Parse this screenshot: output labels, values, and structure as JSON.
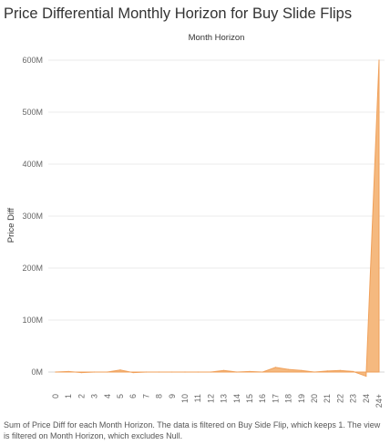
{
  "page": {
    "title": "Price Differential Monthly Horizon for Buy Slide Flips",
    "caption": "Sum of Price Diff for each Month Horizon. The data is filtered on Buy Side Flip, which keeps 1. The view is filtered on Month Horizon, which excludes Null."
  },
  "colors": {
    "area_fill": "#F5B97F",
    "area_stroke": "#F0A05A",
    "gridline": "#EBEBEB",
    "zero_line": "#D6D6D6",
    "text": "#333333",
    "tick_text": "#666666"
  },
  "chart_data": {
    "type": "area",
    "title": "Month Horizon",
    "xlabel": "Month Horizon",
    "ylabel": "Price Diff",
    "categories": [
      "0",
      "1",
      "2",
      "3",
      "4",
      "5",
      "6",
      "7",
      "8",
      "9",
      "10",
      "11",
      "12",
      "13",
      "14",
      "15",
      "16",
      "17",
      "18",
      "19",
      "20",
      "21",
      "22",
      "23",
      "24",
      "24+"
    ],
    "values": [
      0,
      1000000,
      -1000000,
      0,
      0,
      4000000,
      -1000000,
      0,
      0,
      0,
      0,
      0,
      0,
      3000000,
      0,
      1000000,
      0,
      9000000,
      5000000,
      3000000,
      0,
      2000000,
      3000000,
      1000000,
      -8000000,
      600000000
    ],
    "y_ticks": [
      0,
      100000000,
      200000000,
      300000000,
      400000000,
      500000000,
      600000000
    ],
    "y_tick_labels": [
      "0M",
      "100M",
      "200M",
      "300M",
      "400M",
      "500M",
      "600M"
    ],
    "ylim": [
      -15000000,
      605000000
    ],
    "grid": true,
    "legend": "none"
  }
}
